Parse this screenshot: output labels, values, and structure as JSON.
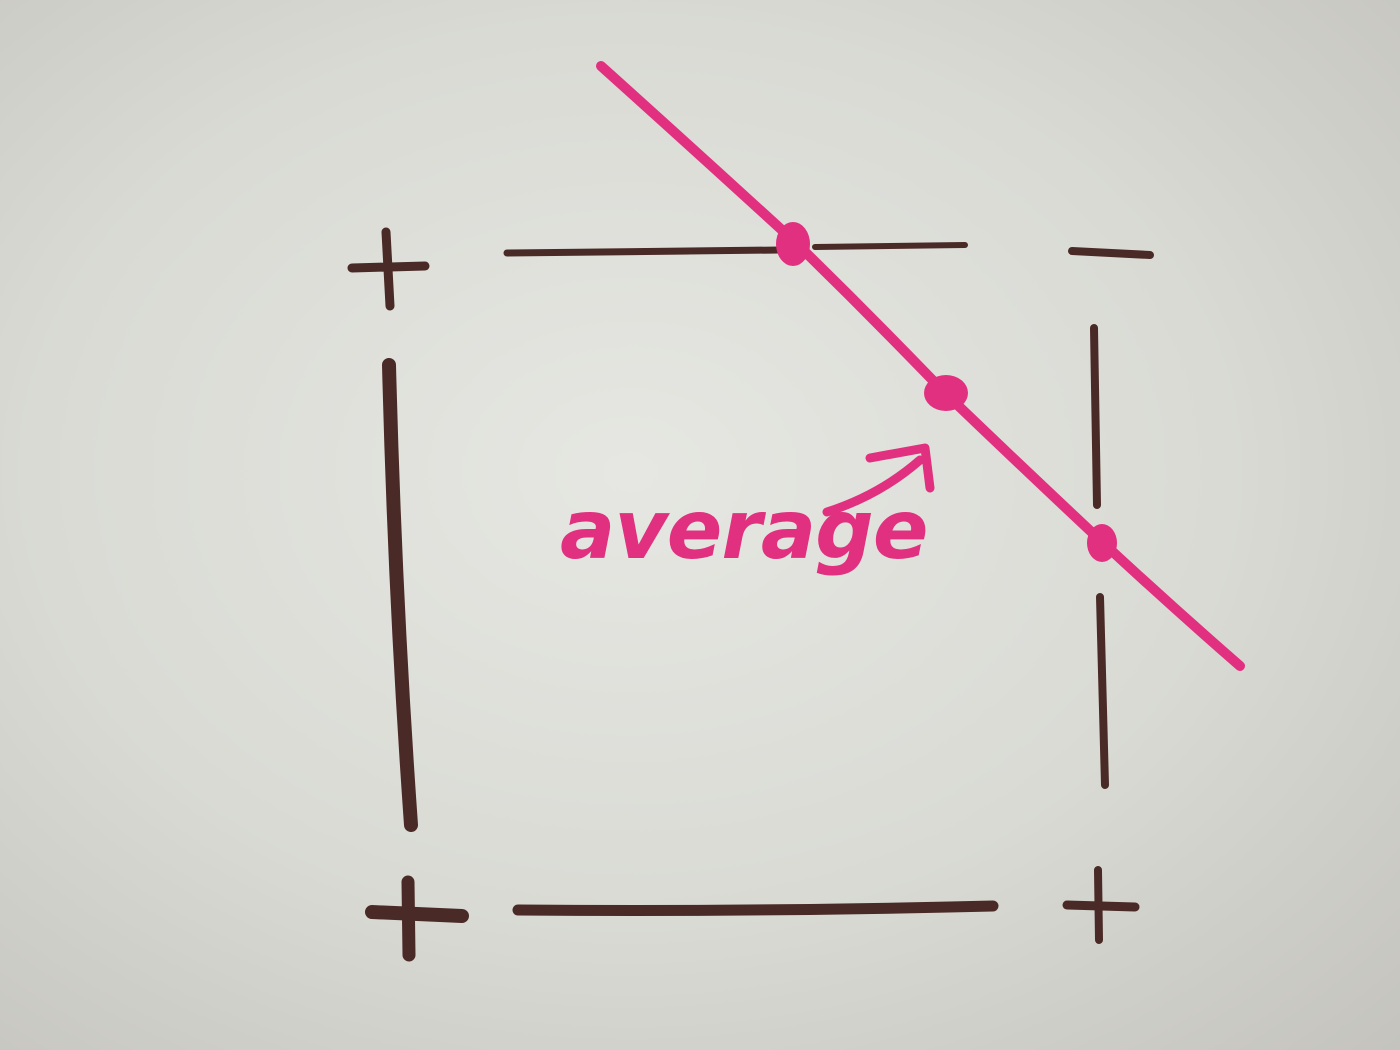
{
  "board": {
    "background": "#dcddd7",
    "marker_brown": "#4a2a26",
    "marker_pink": "#e0307f"
  },
  "corners": {
    "top_left": "+",
    "top_right": "−",
    "bottom_left": "+",
    "bottom_right": "+"
  },
  "annotation": {
    "label": "average",
    "color": "#e0307f"
  },
  "points": [
    {
      "name": "top-edge-point"
    },
    {
      "name": "average-point"
    },
    {
      "name": "right-edge-point"
    }
  ]
}
